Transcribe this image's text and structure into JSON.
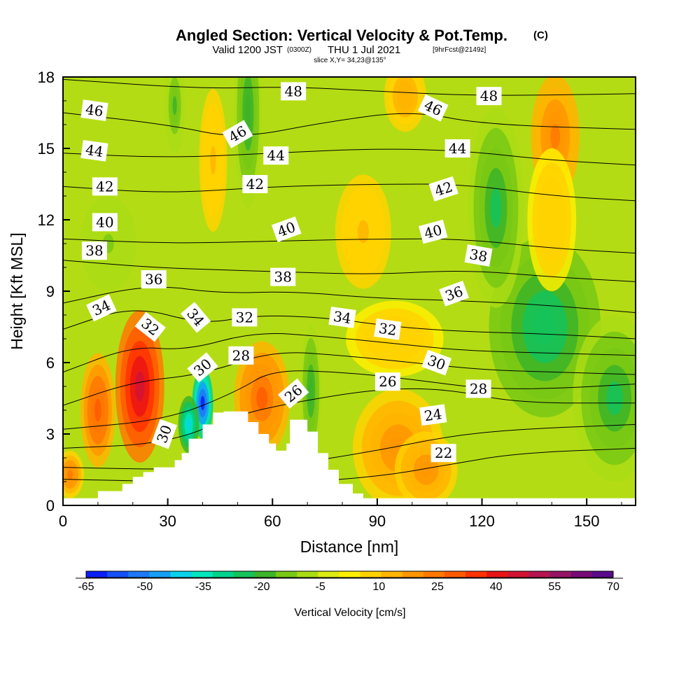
{
  "title": {
    "main": "Angled Section: Vertical Velocity & Pot.Temp.",
    "main_suffix": "(C)",
    "valid_a": "Valid 1200 JST",
    "valid_b": "(0300Z)",
    "valid_c": "THU 1 Jul 2021",
    "valid_d": "[9hrFcst@2149z]",
    "slice": "slice X,Y= 34,23@135°"
  },
  "chart_data": {
    "type": "heatmap",
    "xlabel": "Distance [nm]",
    "ylabel": "Height [Kft MSL]",
    "xlim": [
      0,
      164
    ],
    "ylim": [
      0,
      18
    ],
    "x_ticks": [
      "0",
      "30",
      "60",
      "90",
      "120",
      "150"
    ],
    "y_ticks": [
      "0",
      "3",
      "6",
      "9",
      "12",
      "15",
      "18"
    ],
    "colorbar": {
      "label": "Vertical Velocity [cm/s]",
      "tick_labels": [
        "-65",
        "-50",
        "-35",
        "-20",
        "-5",
        "10",
        "25",
        "40",
        "55",
        "70"
      ],
      "min": -65,
      "max": 70,
      "colors": [
        "#0a1ef5",
        "#1450f5",
        "#1e78f5",
        "#14a0f5",
        "#0ad2eb",
        "#00e6be",
        "#00d28c",
        "#14c35a",
        "#3cb428",
        "#78c814",
        "#aadc14",
        "#dceb14",
        "#fff000",
        "#ffd200",
        "#ffb400",
        "#ff9600",
        "#ff7800",
        "#ff5a00",
        "#ff3200",
        "#eb1414",
        "#d21432",
        "#b41450",
        "#961464",
        "#780a78",
        "#5a0a8c"
      ]
    },
    "terrain_profile": [
      [
        0,
        0.3
      ],
      [
        10,
        0.6
      ],
      [
        15,
        0.6
      ],
      [
        17,
        0.9
      ],
      [
        20,
        1.2
      ],
      [
        23,
        1.4
      ],
      [
        26,
        1.6
      ],
      [
        30,
        1.6
      ],
      [
        32,
        1.9
      ],
      [
        34,
        2.2
      ],
      [
        36,
        2.8
      ],
      [
        40,
        3.4
      ],
      [
        43,
        3.9
      ],
      [
        46,
        3.95
      ],
      [
        50,
        3.95
      ],
      [
        53,
        3.5
      ],
      [
        56,
        3.0
      ],
      [
        59,
        2.6
      ],
      [
        61,
        2.3
      ],
      [
        64,
        2.6
      ],
      [
        65,
        3.6
      ],
      [
        69,
        3.6
      ],
      [
        70,
        3.1
      ],
      [
        73,
        2.2
      ],
      [
        76,
        1.5
      ],
      [
        79,
        0.9
      ],
      [
        83,
        0.5
      ],
      [
        86,
        0.3
      ],
      [
        164,
        0.3
      ]
    ],
    "theta_contours": [
      {
        "label": "22",
        "points": [
          [
            0,
            1.1
          ],
          [
            30,
            1.0
          ],
          [
            60,
            0.9
          ],
          [
            90,
            1.2
          ],
          [
            110,
            1.7
          ],
          [
            130,
            2.2
          ],
          [
            164,
            2.4
          ]
        ]
      },
      {
        "label": "24",
        "points": [
          [
            0,
            1.6
          ],
          [
            30,
            1.5
          ],
          [
            60,
            1.6
          ],
          [
            90,
            2.3
          ],
          [
            110,
            2.9
          ],
          [
            130,
            3.2
          ],
          [
            164,
            3.4
          ]
        ]
      },
      {
        "label": "26",
        "points": [
          [
            0,
            2.4
          ],
          [
            30,
            2.6
          ],
          [
            50,
            3.8
          ],
          [
            65,
            4.3
          ],
          [
            90,
            4.9
          ],
          [
            110,
            4.9
          ],
          [
            130,
            4.3
          ],
          [
            164,
            4.3
          ]
        ]
      },
      {
        "label": "28",
        "points": [
          [
            0,
            3.2
          ],
          [
            30,
            3.6
          ],
          [
            50,
            4.8
          ],
          [
            60,
            5.7
          ],
          [
            80,
            5.6
          ],
          [
            100,
            5.3
          ],
          [
            120,
            4.9
          ],
          [
            140,
            4.9
          ],
          [
            164,
            5.1
          ]
        ]
      },
      {
        "label": "30",
        "points": [
          [
            0,
            4.2
          ],
          [
            20,
            5.2
          ],
          [
            40,
            5.5
          ],
          [
            60,
            6.5
          ],
          [
            80,
            6.3
          ],
          [
            100,
            6.0
          ],
          [
            120,
            5.7
          ],
          [
            140,
            5.6
          ],
          [
            164,
            5.5
          ]
        ]
      },
      {
        "label": "32",
        "points": [
          [
            0,
            5.6
          ],
          [
            20,
            6.7
          ],
          [
            35,
            6.5
          ],
          [
            55,
            7.3
          ],
          [
            75,
            7.1
          ],
          [
            95,
            6.8
          ],
          [
            115,
            6.5
          ],
          [
            140,
            6.4
          ],
          [
            164,
            6.3
          ]
        ]
      },
      {
        "label": "34",
        "points": [
          [
            0,
            7.4
          ],
          [
            20,
            8.4
          ],
          [
            40,
            7.6
          ],
          [
            55,
            8.0
          ],
          [
            75,
            7.9
          ],
          [
            95,
            7.5
          ],
          [
            115,
            7.3
          ],
          [
            140,
            7.2
          ],
          [
            164,
            7.0
          ]
        ]
      },
      {
        "label": "36",
        "points": [
          [
            0,
            8.5
          ],
          [
            25,
            9.3
          ],
          [
            45,
            8.9
          ],
          [
            65,
            9.0
          ],
          [
            90,
            8.7
          ],
          [
            115,
            8.6
          ],
          [
            140,
            8.4
          ],
          [
            164,
            8.1
          ]
        ]
      },
      {
        "label": "38",
        "points": [
          [
            0,
            10.3
          ],
          [
            25,
            10.0
          ],
          [
            45,
            9.9
          ],
          [
            65,
            9.8
          ],
          [
            90,
            9.7
          ],
          [
            115,
            9.9
          ],
          [
            140,
            9.6
          ],
          [
            164,
            9.4
          ]
        ]
      },
      {
        "label": "40",
        "points": [
          [
            0,
            11.2
          ],
          [
            30,
            11.0
          ],
          [
            60,
            11.1
          ],
          [
            90,
            11.2
          ],
          [
            115,
            11.2
          ],
          [
            140,
            10.8
          ],
          [
            164,
            10.6
          ]
        ]
      },
      {
        "label": "42",
        "points": [
          [
            0,
            13.4
          ],
          [
            30,
            13.1
          ],
          [
            60,
            13.4
          ],
          [
            90,
            13.5
          ],
          [
            115,
            13.5
          ],
          [
            140,
            13.0
          ],
          [
            164,
            12.8
          ]
        ]
      },
      {
        "label": "44",
        "points": [
          [
            0,
            14.8
          ],
          [
            30,
            14.6
          ],
          [
            60,
            14.8
          ],
          [
            90,
            15.0
          ],
          [
            115,
            14.9
          ],
          [
            140,
            14.5
          ],
          [
            164,
            14.3
          ]
        ]
      },
      {
        "label": "46",
        "points": [
          [
            0,
            16.5
          ],
          [
            30,
            16.0
          ],
          [
            50,
            15.4
          ],
          [
            75,
            16.1
          ],
          [
            100,
            16.6
          ],
          [
            120,
            16.0
          ],
          [
            164,
            15.8
          ]
        ]
      },
      {
        "label": "48",
        "points": [
          [
            0,
            17.9
          ],
          [
            40,
            17.5
          ],
          [
            65,
            17.6
          ],
          [
            90,
            17.4
          ],
          [
            120,
            17.2
          ],
          [
            164,
            17.3
          ]
        ]
      }
    ],
    "theta_labels": [
      {
        "text": "46",
        "x": 9,
        "y": 16.6,
        "angle": 8
      },
      {
        "text": "44",
        "x": 9,
        "y": 14.9,
        "angle": 8
      },
      {
        "text": "42",
        "x": 12,
        "y": 13.4,
        "angle": 0
      },
      {
        "text": "40",
        "x": 12,
        "y": 11.9,
        "angle": 0
      },
      {
        "text": "38",
        "x": 9,
        "y": 10.7,
        "angle": 0
      },
      {
        "text": "36",
        "x": 26,
        "y": 9.5,
        "angle": 0
      },
      {
        "text": "34",
        "x": 11,
        "y": 8.3,
        "angle": -25
      },
      {
        "text": "32",
        "x": 25,
        "y": 7.5,
        "angle": 38
      },
      {
        "text": "34",
        "x": 38,
        "y": 7.9,
        "angle": 50
      },
      {
        "text": "30",
        "x": 40,
        "y": 5.8,
        "angle": -40
      },
      {
        "text": "30",
        "x": 29,
        "y": 3.0,
        "angle": -70
      },
      {
        "text": "48",
        "x": 66,
        "y": 17.4,
        "angle": 0
      },
      {
        "text": "46",
        "x": 50,
        "y": 15.6,
        "angle": -30
      },
      {
        "text": "44",
        "x": 61,
        "y": 14.7,
        "angle": 0
      },
      {
        "text": "42",
        "x": 55,
        "y": 13.5,
        "angle": 0
      },
      {
        "text": "40",
        "x": 64,
        "y": 11.6,
        "angle": -20
      },
      {
        "text": "38",
        "x": 63,
        "y": 9.6,
        "angle": 0
      },
      {
        "text": "32",
        "x": 52,
        "y": 7.9,
        "angle": 0
      },
      {
        "text": "28",
        "x": 51,
        "y": 6.3,
        "angle": 0
      },
      {
        "text": "26",
        "x": 66,
        "y": 4.7,
        "angle": -40
      },
      {
        "text": "34",
        "x": 80,
        "y": 7.9,
        "angle": 8
      },
      {
        "text": "32",
        "x": 93,
        "y": 7.4,
        "angle": 8
      },
      {
        "text": "26",
        "x": 93,
        "y": 5.2,
        "angle": 0
      },
      {
        "text": "46",
        "x": 106,
        "y": 16.7,
        "angle": 25
      },
      {
        "text": "48",
        "x": 122,
        "y": 17.2,
        "angle": 0
      },
      {
        "text": "44",
        "x": 113,
        "y": 15.0,
        "angle": 0
      },
      {
        "text": "42",
        "x": 109,
        "y": 13.3,
        "angle": -18
      },
      {
        "text": "40",
        "x": 106,
        "y": 11.5,
        "angle": -15
      },
      {
        "text": "38",
        "x": 119,
        "y": 10.5,
        "angle": 10
      },
      {
        "text": "36",
        "x": 112,
        "y": 8.9,
        "angle": -20
      },
      {
        "text": "30",
        "x": 107,
        "y": 6.0,
        "angle": 20
      },
      {
        "text": "28",
        "x": 119,
        "y": 4.9,
        "angle": 0
      },
      {
        "text": "24",
        "x": 106,
        "y": 3.8,
        "angle": -8
      },
      {
        "text": "22",
        "x": 109,
        "y": 2.2,
        "angle": 0
      }
    ],
    "velocity_blobs": [
      {
        "x": 22,
        "y": 5.0,
        "rx": 7,
        "ry": 3.2,
        "w": 48
      },
      {
        "x": 10,
        "y": 4.0,
        "rx": 5,
        "ry": 2.4,
        "w": 30
      },
      {
        "x": 40,
        "y": 4.3,
        "rx": 3,
        "ry": 1.5,
        "w": -60
      },
      {
        "x": 36,
        "y": 3.4,
        "rx": 3,
        "ry": 1.2,
        "w": -40
      },
      {
        "x": 57,
        "y": 4.5,
        "rx": 8,
        "ry": 2.4,
        "w": 28
      },
      {
        "x": 71,
        "y": 4.8,
        "rx": 3,
        "ry": 2.8,
        "w": -20
      },
      {
        "x": 96,
        "y": 2.4,
        "rx": 13,
        "ry": 2.5,
        "w": 20
      },
      {
        "x": 104,
        "y": 1.5,
        "rx": 9,
        "ry": 1.6,
        "w": 20
      },
      {
        "x": 138,
        "y": 7.5,
        "rx": 16,
        "ry": 3.8,
        "w": -26
      },
      {
        "x": 158,
        "y": 4.5,
        "rx": 12,
        "ry": 3.5,
        "w": -22
      },
      {
        "x": 124,
        "y": 12.5,
        "rx": 8,
        "ry": 4.2,
        "w": -22
      },
      {
        "x": 141,
        "y": 15.5,
        "rx": 7,
        "ry": 2.6,
        "w": 24
      },
      {
        "x": 140,
        "y": 12.0,
        "rx": 7,
        "ry": 3.0,
        "w": 10
      },
      {
        "x": 86,
        "y": 11.5,
        "rx": 8,
        "ry": 2.4,
        "w": 12
      },
      {
        "x": 53,
        "y": 16.5,
        "rx": 4,
        "ry": 4.0,
        "w": -20
      },
      {
        "x": 43,
        "y": 14.5,
        "rx": 4,
        "ry": 3.0,
        "w": 12
      },
      {
        "x": 98,
        "y": 17.2,
        "rx": 6,
        "ry": 1.5,
        "w": 15
      },
      {
        "x": 32,
        "y": 16.8,
        "rx": 3,
        "ry": 2.0,
        "w": -18
      },
      {
        "x": 13,
        "y": 11.0,
        "rx": 8,
        "ry": 2.0,
        "w": -12
      },
      {
        "x": 95,
        "y": 7.0,
        "rx": 14,
        "ry": 1.6,
        "w": 10
      },
      {
        "x": 2,
        "y": 1.3,
        "rx": 4,
        "ry": 1.0,
        "w": 22
      }
    ]
  }
}
